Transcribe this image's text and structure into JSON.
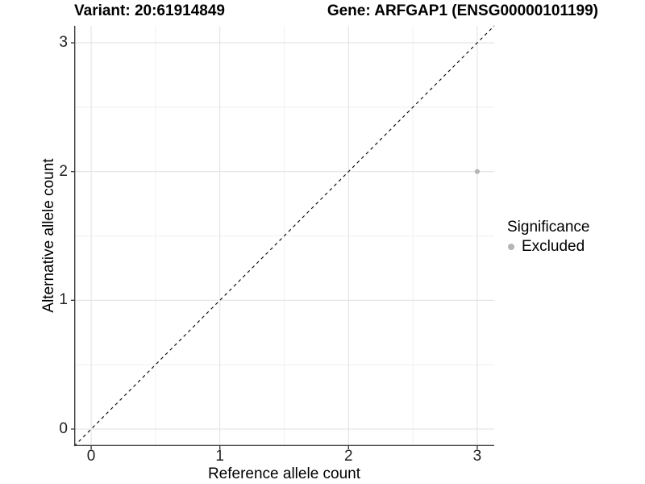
{
  "title": {
    "left": "Variant: 20:61914849",
    "right": "Gene: ARFGAP1 (ENSG00000101199)"
  },
  "chart_data": {
    "type": "scatter",
    "title": "Variant: 20:61914849   Gene: ARFGAP1 (ENSG00000101199)",
    "xlabel": "Reference allele count",
    "ylabel": "Alternative allele count",
    "xlim": [
      -0.132,
      3.132
    ],
    "ylim": [
      -0.132,
      3.132
    ],
    "x_ticks": [
      0,
      1,
      2,
      3
    ],
    "y_ticks": [
      0,
      1,
      2,
      3
    ],
    "x_tick_labels": [
      "0",
      "1",
      "2",
      "3"
    ],
    "y_tick_labels": [
      "0",
      "1",
      "2",
      "3"
    ],
    "minor_ticks": [
      0.5,
      1.5,
      2.5
    ],
    "grid": "major+minor",
    "reference_line": {
      "type": "identity y=x",
      "linetype": "dashed",
      "color": "#000000"
    },
    "series": [
      {
        "name": "Excluded",
        "color": "#b5b5b5",
        "points": [
          {
            "x": 3,
            "y": 2
          }
        ]
      }
    ],
    "legend": {
      "title": "Significance",
      "position": "right",
      "entries": [
        {
          "label": "Excluded",
          "marker": "circle",
          "color": "#b5b5b5"
        }
      ]
    }
  },
  "colors": {
    "background": "#ffffff",
    "grid_major": "#e3e3e3",
    "grid_minor": "#efefef",
    "axis_line": "#3c3c3c",
    "tick_text": "#1f1f1f",
    "point": "#b5b5b5",
    "reference_line": "#000000"
  }
}
